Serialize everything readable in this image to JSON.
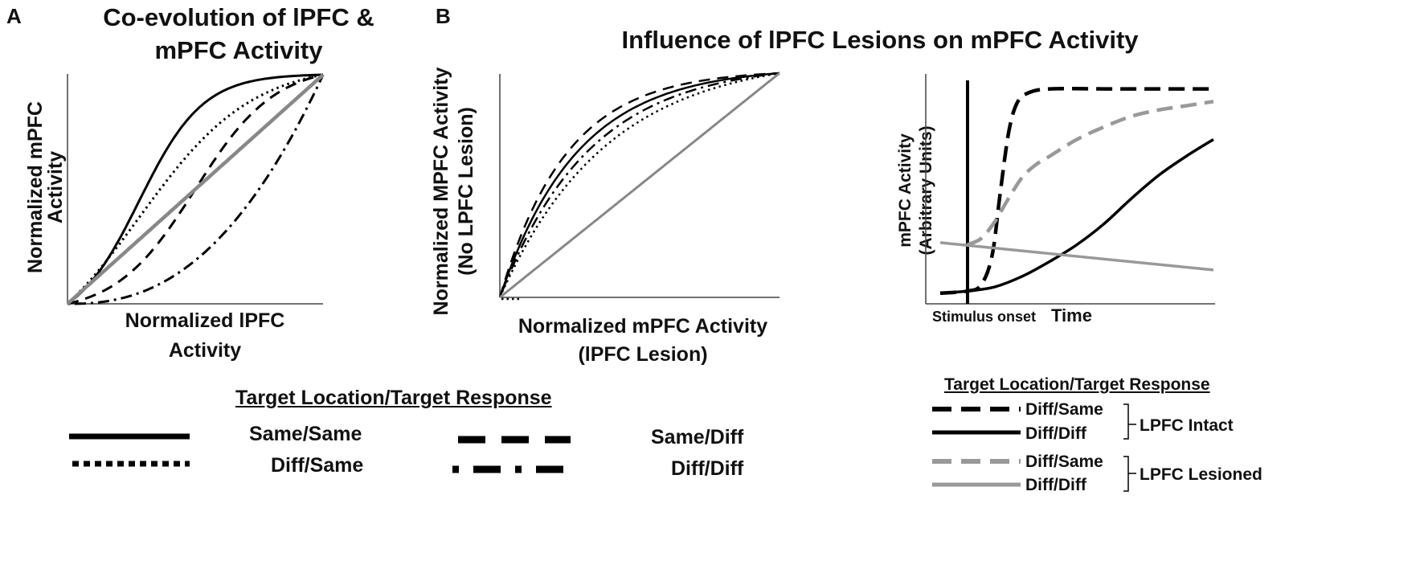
{
  "panels": {
    "a": {
      "letter": "A",
      "title_line1": "Co-evolution of lPFC &",
      "title_line2": "mPFC Activity"
    },
    "b": {
      "letter": "B",
      "title": "Influence of lPFC Lesions on mPFC Activity"
    }
  },
  "legend_main": {
    "heading": "Target Location/Target Response",
    "items": [
      {
        "style": "solid",
        "label": "Same/Same"
      },
      {
        "style": "dotted",
        "label": "Diff/Same"
      },
      {
        "style": "dashed",
        "label": "Same/Diff"
      },
      {
        "style": "dashdot",
        "label": "Diff/Diff"
      }
    ]
  },
  "legend_time": {
    "heading": "Target Location/Target Response",
    "items": [
      {
        "style": "dashed-black",
        "label": "Diff/Same"
      },
      {
        "style": "solid-black",
        "label": "Diff/Diff"
      },
      {
        "style": "dashed-gray",
        "label": "Diff/Same"
      },
      {
        "style": "solid-gray",
        "label": "Diff/Diff"
      }
    ],
    "groups": [
      "LPFC Intact",
      "LPFC Lesioned"
    ]
  },
  "chart_data": [
    {
      "type": "line",
      "xlabel_line1": "Normalized lPFC",
      "xlabel_line2": "Activity",
      "ylabel_line1": "Normalized mPFC",
      "ylabel_line2": "Activity",
      "xlim": [
        0,
        1
      ],
      "ylim": [
        0,
        1
      ],
      "series": [
        {
          "name": "Same/Same",
          "style": "solid",
          "color": "#000000",
          "kind": "sigmoid_above",
          "k": 8
        },
        {
          "name": "Diff/Same",
          "style": "dotted",
          "color": "#000000",
          "kind": "sigmoid_above",
          "k": 4.5
        },
        {
          "name": "Same/Diff",
          "style": "dashed",
          "color": "#000000",
          "kind": "sigmoid_mid",
          "k": 1.6
        },
        {
          "name": "Diff/Diff",
          "style": "dashdot",
          "color": "#000000",
          "kind": "power",
          "p": 2.4
        },
        {
          "style": "solid",
          "color": "#888888",
          "kind": "identity"
        }
      ]
    },
    {
      "type": "line",
      "xlabel_line1": "Normalized mPFC Activity",
      "xlabel_line2": "(lPFC Lesion)",
      "ylabel_line1": "Normalized MPFC Activity",
      "ylabel_line2": "(No LPFC Lesion)",
      "xlim": [
        0,
        1
      ],
      "ylim": [
        0,
        1
      ],
      "series": [
        {
          "name": "Same/Diff",
          "style": "dashed",
          "color": "#000000",
          "kind": "saturate",
          "k": 4.2
        },
        {
          "name": "Same/Same",
          "style": "solid",
          "color": "#000000",
          "kind": "saturate",
          "k": 3.6
        },
        {
          "name": "Diff/Diff",
          "style": "dashdot",
          "color": "#000000",
          "kind": "saturate",
          "k": 3.1
        },
        {
          "name": "Diff/Same",
          "style": "dotted",
          "color": "#000000",
          "kind": "saturate",
          "k": 2.6
        },
        {
          "style": "solid",
          "color": "#888888",
          "kind": "identity"
        }
      ]
    },
    {
      "type": "line",
      "xlabel": "Time",
      "ylabel_line1": "mPFC Activity",
      "ylabel_line2": "(Arbitrary Units)",
      "annotation": "Stimulus onset",
      "stimulus_onset": 0.1,
      "xlim": [
        0,
        1
      ],
      "ylim": [
        0,
        1
      ],
      "series": [
        {
          "name": "Diff/Same (LPFC Intact)",
          "style": "dashed",
          "color": "#000000",
          "x": [
            0,
            0.1,
            0.15,
            0.19,
            0.22,
            0.25,
            0.28,
            0.32,
            0.4,
            0.6,
            0.8,
            1.0
          ],
          "y": [
            0.02,
            0.03,
            0.06,
            0.2,
            0.5,
            0.78,
            0.92,
            0.97,
            0.99,
            0.99,
            0.99,
            0.99
          ]
        },
        {
          "name": "Diff/Diff (LPFC Intact)",
          "style": "solid",
          "color": "#000000",
          "x": [
            0,
            0.1,
            0.2,
            0.3,
            0.4,
            0.5,
            0.6,
            0.7,
            0.8,
            0.9,
            1.0
          ],
          "y": [
            0.02,
            0.03,
            0.05,
            0.1,
            0.17,
            0.25,
            0.35,
            0.47,
            0.58,
            0.67,
            0.75
          ]
        },
        {
          "name": "Diff/Same (LPFC Lesioned)",
          "style": "dashed",
          "color": "#999999",
          "x": [
            0.1,
            0.15,
            0.2,
            0.25,
            0.3,
            0.35,
            0.4,
            0.5,
            0.6,
            0.7,
            0.8,
            0.9,
            1.0
          ],
          "y": [
            0.25,
            0.28,
            0.36,
            0.47,
            0.57,
            0.63,
            0.67,
            0.75,
            0.81,
            0.86,
            0.89,
            0.91,
            0.93
          ]
        },
        {
          "name": "Diff/Diff (LPFC Lesioned)",
          "style": "solid",
          "color": "#999999",
          "x": [
            0,
            1.0
          ],
          "y": [
            0.26,
            0.13
          ]
        }
      ]
    }
  ]
}
